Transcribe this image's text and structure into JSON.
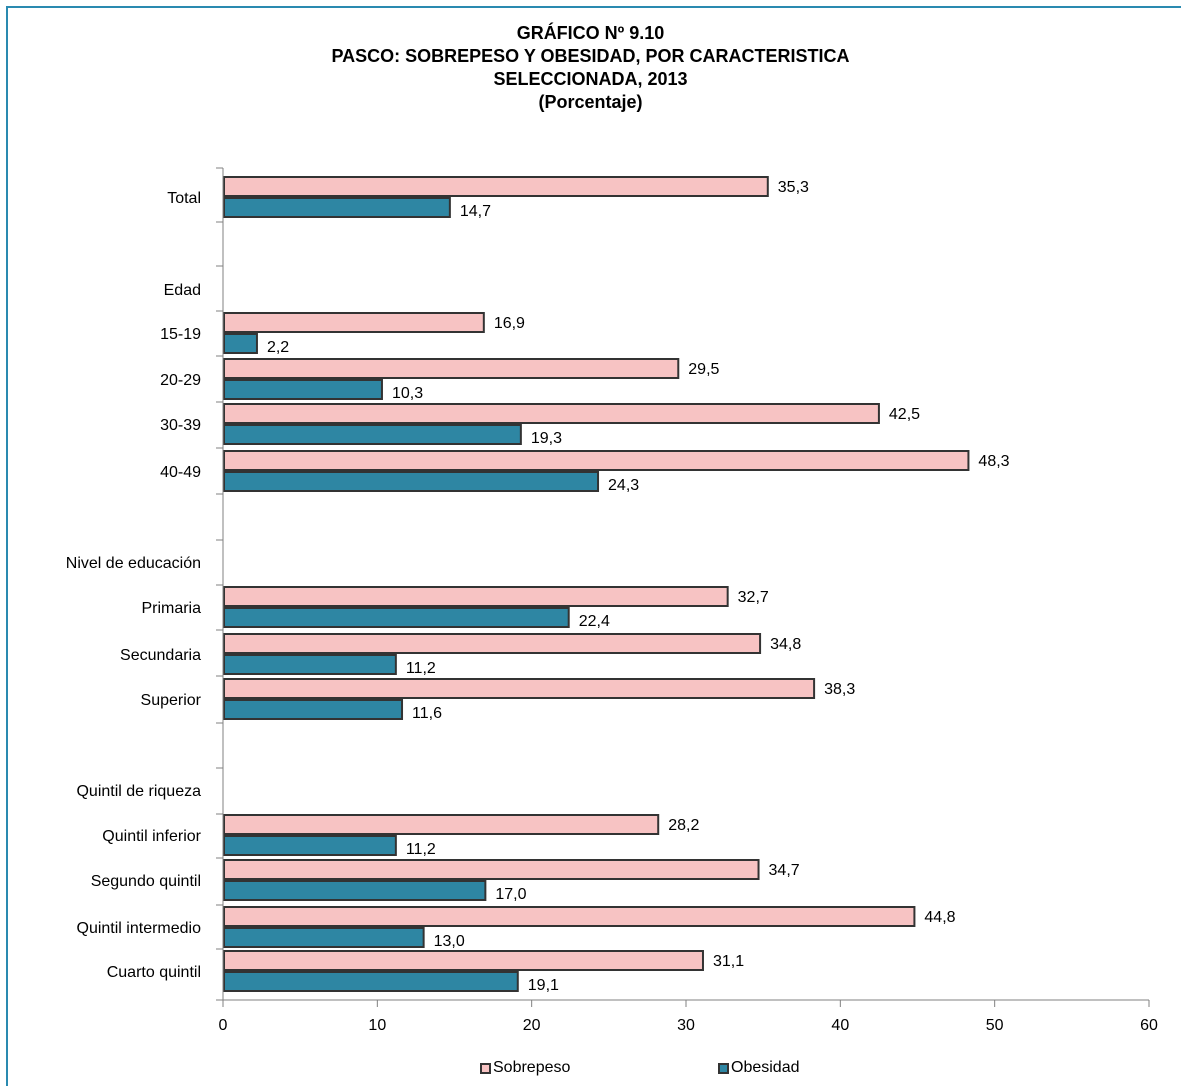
{
  "title": {
    "line1": "GRÁFICO Nº 9.10",
    "line2": "PASCO: SOBREPESO Y OBESIDAD, POR CARACTERISTICA",
    "line3": "SELECCIONADA, 2013",
    "line4": "(Porcentaje)"
  },
  "colors": {
    "sobrepeso": "#f7c3c3",
    "obesidad": "#2e86a3",
    "bar_border": "#333333",
    "axis": "#808080",
    "frame": "#2a8ab0"
  },
  "legend": {
    "sobrepeso": "Sobrepeso",
    "obesidad": "Obesidad"
  },
  "chart_data": {
    "type": "bar",
    "orientation": "horizontal",
    "title": "PASCO: SOBREPESO Y OBESIDAD, POR CARACTERISTICA SELECCIONADA, 2013",
    "xlim": [
      0,
      60
    ],
    "x_ticks": [
      0,
      10,
      20,
      30,
      40,
      50,
      60
    ],
    "legend_position": "bottom",
    "grid": false,
    "categories": [
      "Total",
      "Edad",
      "15-19",
      "20-29",
      "30-39",
      "40-49",
      "Nivel de educación",
      "Primaria",
      "Secundaria",
      "Superior",
      "Quintil de riqueza",
      "Quintil inferior",
      "Segundo quintil",
      "Quintil intermedio",
      "Cuarto quintil"
    ],
    "series": [
      {
        "name": "Sobrepeso",
        "values": [
          35.3,
          null,
          16.9,
          29.5,
          42.5,
          48.3,
          null,
          32.7,
          34.8,
          38.3,
          null,
          28.2,
          34.7,
          44.8,
          31.1
        ],
        "labels": [
          "35,3",
          "",
          "16,9",
          "29,5",
          "42,5",
          "48,3",
          "",
          "32,7",
          "34,8",
          "38,3",
          "",
          "28,2",
          "34,7",
          "44,8",
          "31,1"
        ]
      },
      {
        "name": "Obesidad",
        "values": [
          14.7,
          null,
          2.2,
          10.3,
          19.3,
          24.3,
          null,
          22.4,
          11.2,
          11.6,
          null,
          11.2,
          17.0,
          13.0,
          19.1
        ],
        "labels": [
          "14,7",
          "",
          "2,2",
          "10,3",
          "19,3",
          "24,3",
          "",
          "22,4",
          "11,2",
          "11,6",
          "",
          "11,2",
          "17,0",
          "13,0",
          "19,1"
        ]
      }
    ]
  }
}
